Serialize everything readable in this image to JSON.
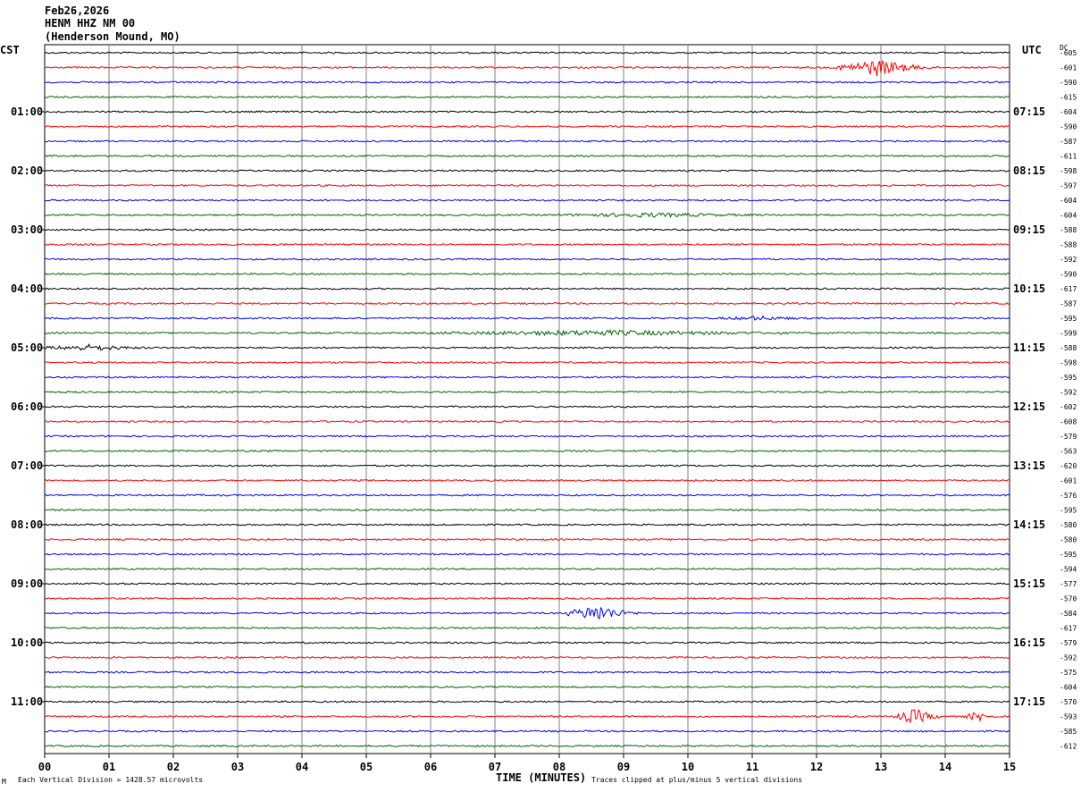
{
  "header": {
    "date": "Feb26,2026",
    "station": "HENM HHZ NM 00",
    "location": "(Henderson Mound, MO)"
  },
  "left_zone": "CST",
  "right_zone": "UTC",
  "dc_label": "DC",
  "footer": {
    "scale": "Each Vertical Division = 1428.57 microvolts",
    "clip": "Traces clipped at plus/minus 5 vertical divisions",
    "corner_mark": "M"
  },
  "chart_data": {
    "type": "line",
    "title": "",
    "xlabel": "TIME (MINUTES)",
    "ylabel": "",
    "x_ticks": [
      "00",
      "01",
      "02",
      "03",
      "04",
      "05",
      "06",
      "07",
      "08",
      "09",
      "10",
      "11",
      "12",
      "13",
      "14",
      "15"
    ],
    "xlim": [
      0,
      15
    ],
    "trace_colors": [
      "#000000",
      "#ff0000",
      "#0000ff",
      "#006600"
    ],
    "left_hour_labels": [
      "01:00",
      "02:00",
      "03:00",
      "04:00",
      "05:00",
      "06:00",
      "07:00",
      "08:00",
      "09:00",
      "10:00",
      "11:00"
    ],
    "right_hour_labels": [
      "07:15",
      "08:15",
      "09:15",
      "10:15",
      "11:15",
      "12:15",
      "13:15",
      "14:15",
      "15:15",
      "16:15",
      "17:15"
    ],
    "dc_offsets": [
      -605,
      -601,
      -590,
      -615,
      -604,
      -590,
      -587,
      -611,
      -598,
      -597,
      -604,
      -604,
      -588,
      -588,
      -592,
      -590,
      -617,
      -587,
      -595,
      -599,
      -588,
      -598,
      -595,
      -592,
      -602,
      -608,
      -579,
      -563,
      -620,
      -601,
      -576,
      -595,
      -580,
      -580,
      -595,
      -594,
      -577,
      -570,
      -584,
      -617,
      -579,
      -592,
      -575,
      -604,
      -570,
      -593,
      -585,
      -612
    ],
    "events": [
      {
        "row": 1,
        "start_min": 12.3,
        "end_min": 13.9,
        "amplitude": 9
      },
      {
        "row": 19,
        "start_min": 6.0,
        "end_min": 12.5,
        "amplitude": 2.5
      },
      {
        "row": 20,
        "start_min": 0.0,
        "end_min": 1.7,
        "amplitude": 3
      },
      {
        "row": 38,
        "start_min": 8.1,
        "end_min": 9.3,
        "amplitude": 9
      },
      {
        "row": 45,
        "start_min": 13.2,
        "end_min": 14.0,
        "amplitude": 8
      },
      {
        "row": 45,
        "start_min": 14.3,
        "end_min": 14.8,
        "amplitude": 5
      },
      {
        "row": 11,
        "start_min": 8.0,
        "end_min": 11.5,
        "amplitude": 1.8
      },
      {
        "row": 18,
        "start_min": 10.5,
        "end_min": 12.0,
        "amplitude": 1.8
      }
    ]
  }
}
